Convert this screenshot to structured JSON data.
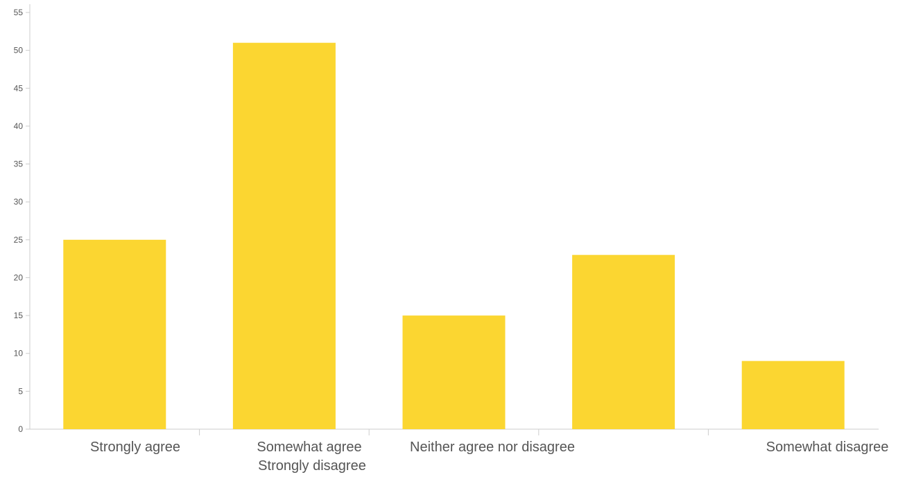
{
  "chart_data": {
    "type": "bar",
    "title": "",
    "xlabel": "",
    "ylabel": "",
    "categories": [
      "Strongly agree",
      "Somewhat agree",
      "Neither agree nor disagree",
      "Strongly disagree",
      "Somewhat disagree"
    ],
    "values": [
      25,
      51,
      15,
      23,
      9
    ],
    "ylim": [
      0,
      55
    ],
    "yticks": [
      0,
      5,
      10,
      15,
      20,
      25,
      30,
      35,
      40,
      45,
      50,
      55
    ],
    "bar_color": "#FBD631",
    "grid": false,
    "legend": "none"
  }
}
